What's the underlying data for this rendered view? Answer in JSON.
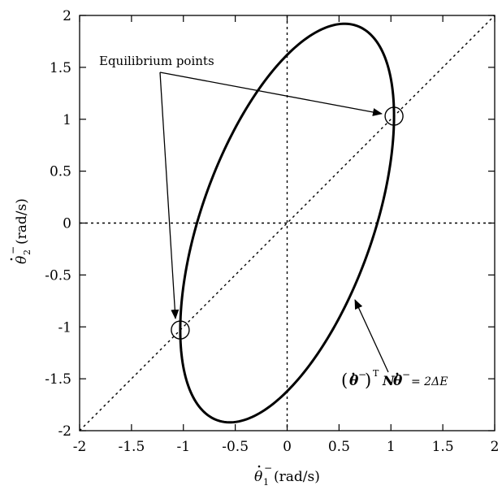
{
  "chart_data": {
    "type": "line",
    "xlim": [
      -2,
      2
    ],
    "ylim": [
      -2,
      2
    ],
    "x_ticks": [
      -2,
      -1.5,
      -1,
      -0.5,
      0,
      0.5,
      1,
      1.5,
      2
    ],
    "y_ticks": [
      -2,
      -1.5,
      -1,
      -0.5,
      0,
      0.5,
      1,
      1.5,
      2
    ],
    "x_tick_labels": [
      "-2",
      "-1.5",
      "-1",
      "-0.5",
      "0",
      "0.5",
      "1",
      "1.5",
      "2"
    ],
    "y_tick_labels": [
      "-2",
      "-1.5",
      "-1",
      "-0.5",
      "0",
      "0.5",
      "1",
      "1.5",
      "2"
    ],
    "xlabel": {
      "symbol": "θ",
      "sub": "1",
      "sup": "−",
      "unit": "(rad/s)"
    },
    "ylabel": {
      "symbol": "θ",
      "sub": "2",
      "sup": "−",
      "unit": "(rad/s)"
    },
    "grid": false,
    "ellipse": {
      "center": [
        0,
        0
      ],
      "extremes": {
        "x_max": [
          1.03,
          1.03
        ],
        "x_min": [
          -1.03,
          -1.03
        ],
        "y_max": [
          0.52,
          1.92
        ],
        "y_min": [
          -0.52,
          -1.92
        ]
      }
    },
    "reference_lines": [
      {
        "kind": "diagonal",
        "equation": "y = x",
        "style": "dotted"
      },
      {
        "kind": "vertical",
        "x": 0,
        "style": "dotted"
      },
      {
        "kind": "horizontal",
        "y": 0,
        "style": "dotted"
      }
    ],
    "equilibrium_points": [
      {
        "x": 1.03,
        "y": 1.03
      },
      {
        "x": -1.03,
        "y": -1.03
      }
    ],
    "annotations": {
      "equilibrium_label": "Equilibrium points",
      "equation_label": {
        "open": "(",
        "vec": "θ",
        "sup": "−",
        "close": ")",
        "transpose": "T",
        "matrix": "N",
        "equals": "= 2ΔE"
      }
    }
  }
}
